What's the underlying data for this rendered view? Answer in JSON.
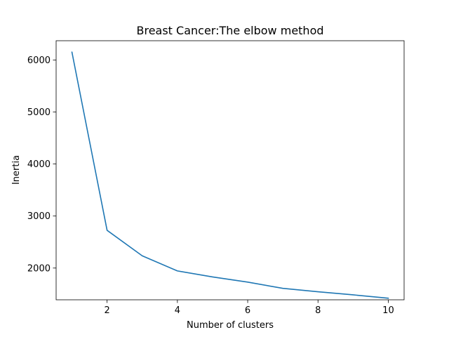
{
  "chart_data": {
    "type": "line",
    "title": "Breast Cancer:The elbow method",
    "xlabel": "Number of clusters",
    "ylabel": "Inertia",
    "xlim": [
      0.55,
      10.45
    ],
    "ylim": [
      1390,
      6370
    ],
    "xticks": [
      2,
      4,
      6,
      8,
      10
    ],
    "yticks": [
      2000,
      3000,
      4000,
      5000,
      6000
    ],
    "grid": false,
    "line_color": "#1f77b4",
    "series": [
      {
        "x": [
          1,
          2,
          3,
          4,
          5,
          6,
          7,
          8,
          9,
          10
        ],
        "y": [
          6150,
          2725,
          2235,
          1945,
          1830,
          1730,
          1610,
          1545,
          1485,
          1420
        ]
      }
    ]
  }
}
